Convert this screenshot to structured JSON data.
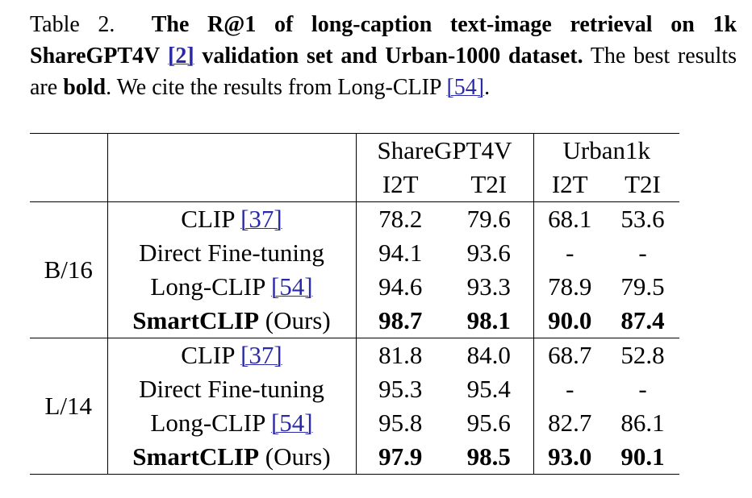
{
  "caption": {
    "label": "Table 2.",
    "title_bold": "The R@1 of long-caption text-image retrieval on 1k ShareGPT4V",
    "title_ref": "[2]",
    "title_bold_end": "validation set and Urban-1000 dataset.",
    "text1": "The best results are",
    "text_bold": "bold",
    "text2": ". We cite the results from Long-CLIP",
    "text_ref": "[54]",
    "text_end": "."
  },
  "table": {
    "column_groups": [
      "ShareGPT4V",
      "Urban1k"
    ],
    "columns": [
      "I2T",
      "T2I",
      "I2T",
      "T2I"
    ],
    "groups": [
      {
        "name": "B/16",
        "rows": [
          {
            "method": "CLIP",
            "ref": "[37]",
            "values": [
              "78.2",
              "79.6",
              "68.1",
              "53.6"
            ]
          },
          {
            "method": "Direct Fine-tuning",
            "values": [
              "94.1",
              "93.6",
              "-",
              "-"
            ]
          },
          {
            "method": "Long-CLIP",
            "ref": "[54]",
            "values": [
              "94.6",
              "93.3",
              "78.9",
              "79.5"
            ]
          },
          {
            "method": "SmartCLIP",
            "suffix": "(Ours)",
            "bold": true,
            "values": [
              "98.7",
              "98.1",
              "90.0",
              "87.4"
            ]
          }
        ]
      },
      {
        "name": "L/14",
        "rows": [
          {
            "method": "CLIP",
            "ref": "[37]",
            "values": [
              "81.8",
              "84.0",
              "68.7",
              "52.8"
            ]
          },
          {
            "method": "Direct Fine-tuning",
            "values": [
              "95.3",
              "95.4",
              "-",
              "-"
            ]
          },
          {
            "method": "Long-CLIP",
            "ref": "[54]",
            "values": [
              "95.8",
              "95.6",
              "82.7",
              "86.1"
            ]
          },
          {
            "method": "SmartCLIP",
            "suffix": "(Ours)",
            "bold": true,
            "values": [
              "97.9",
              "98.5",
              "93.0",
              "90.1"
            ]
          }
        ]
      }
    ]
  }
}
